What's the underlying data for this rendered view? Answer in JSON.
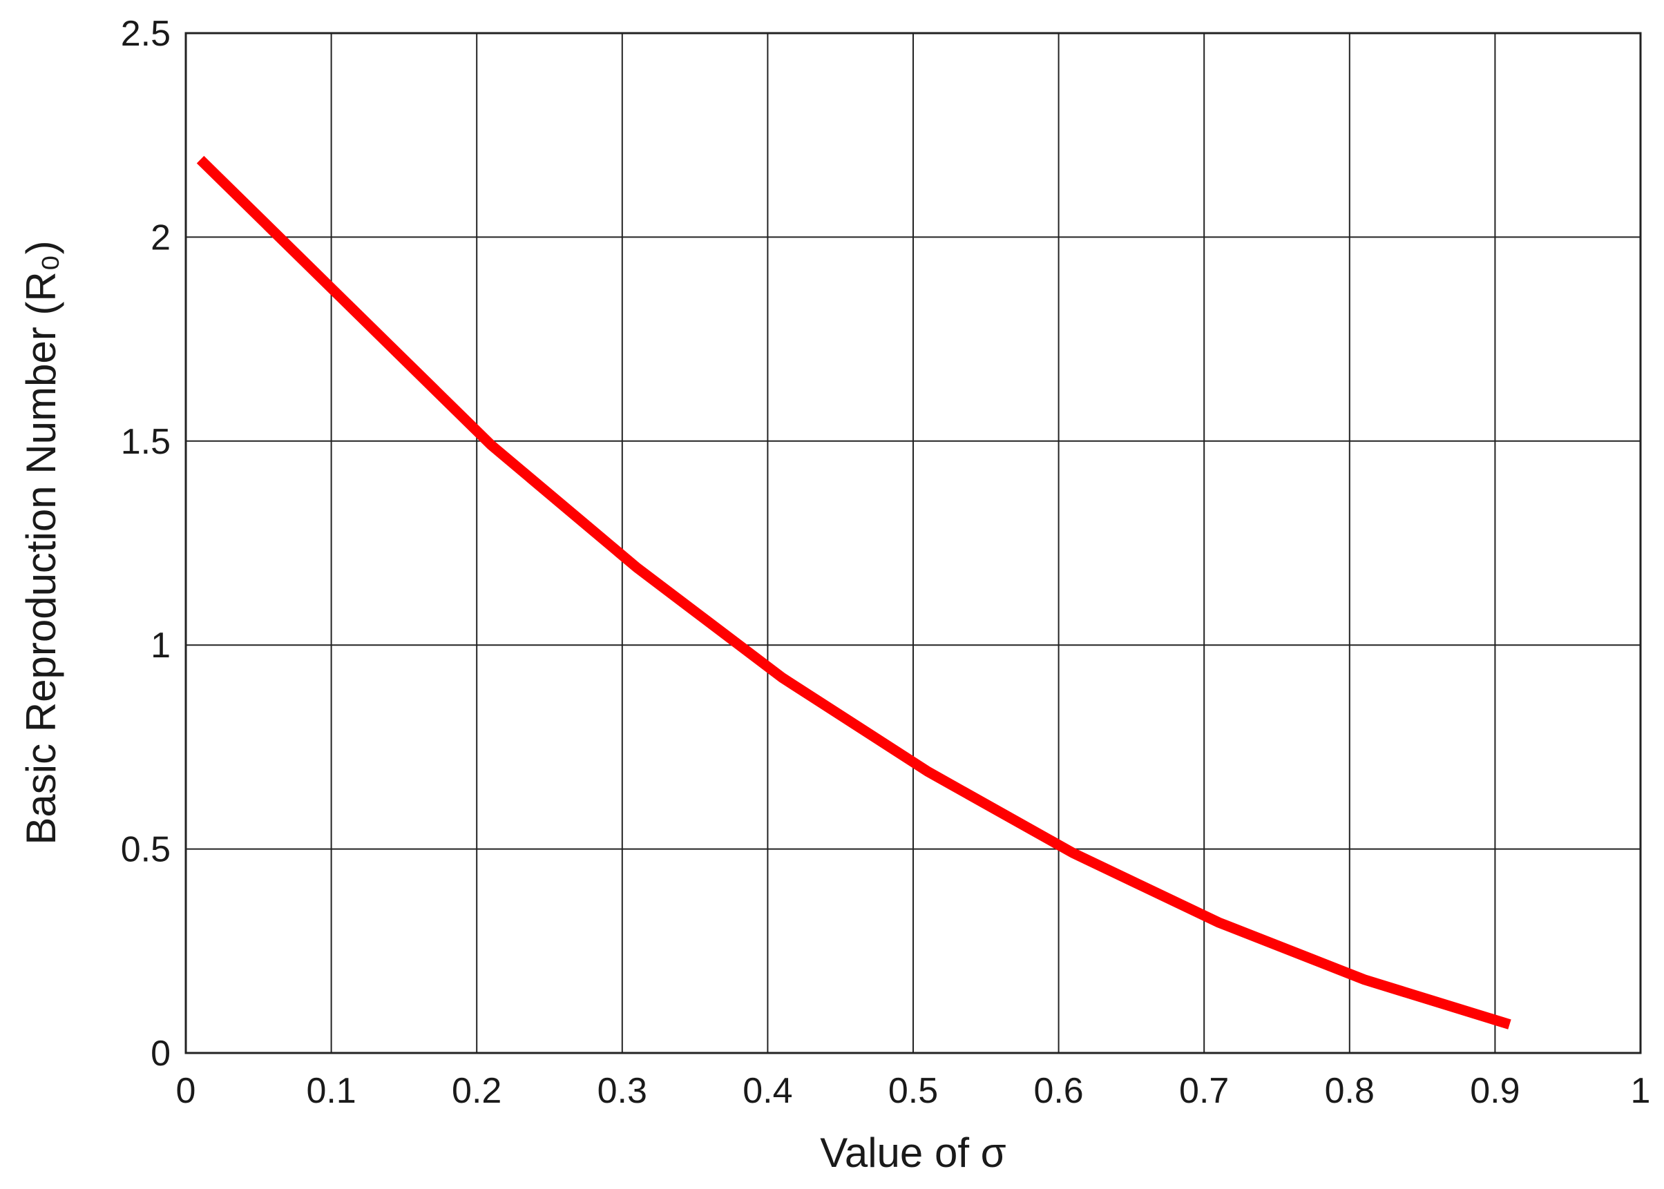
{
  "chart_data": {
    "type": "line",
    "xlabel": "Value of σ",
    "ylabel": "Basic Reproduction Number (R₀)",
    "x": [
      0.01,
      0.11,
      0.21,
      0.31,
      0.41,
      0.51,
      0.61,
      0.71,
      0.81,
      0.91
    ],
    "series": [
      {
        "color": "#ff0000",
        "values": [
          2.19,
          1.84,
          1.49,
          1.19,
          0.92,
          0.69,
          0.49,
          0.32,
          0.18,
          0.07
        ]
      }
    ],
    "xlim": [
      0,
      1
    ],
    "ylim": [
      0,
      2.5
    ],
    "xticks": [
      0,
      0.1,
      0.2,
      0.3,
      0.4,
      0.5,
      0.6,
      0.7,
      0.8,
      0.9,
      1
    ],
    "yticks": [
      0,
      0.5,
      1,
      1.5,
      2,
      2.5
    ],
    "grid": true
  }
}
